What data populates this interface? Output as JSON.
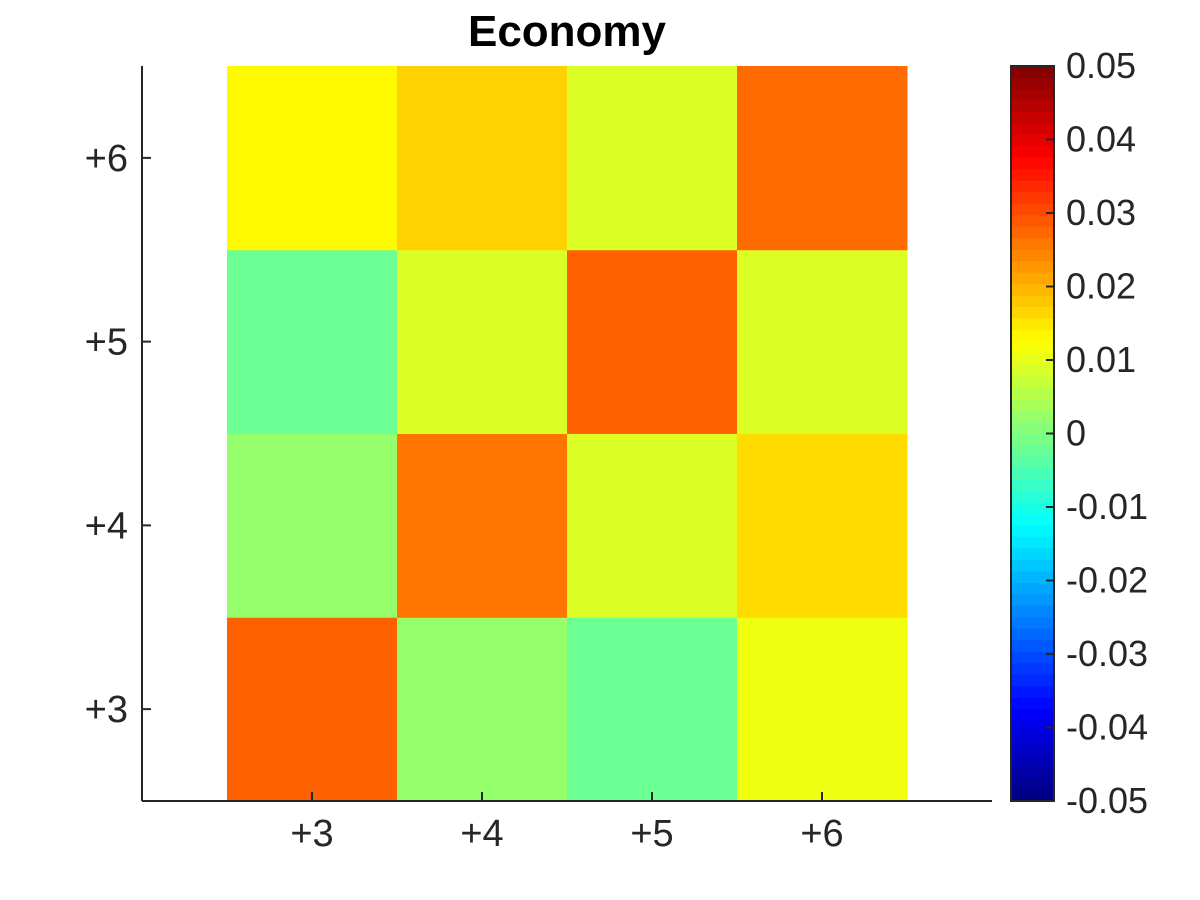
{
  "chart_data": {
    "type": "heatmap",
    "title": "Economy",
    "xlabel": "",
    "ylabel": "",
    "x_categories": [
      "+3",
      "+4",
      "+5",
      "+6"
    ],
    "y_categories": [
      "+3",
      "+4",
      "+5",
      "+6"
    ],
    "values": [
      [
        0.028,
        0.002,
        -0.002,
        0.011
      ],
      [
        0.002,
        0.026,
        0.009,
        0.016
      ],
      [
        -0.002,
        0.009,
        0.028,
        0.009
      ],
      [
        0.013,
        0.017,
        0.009,
        0.027
      ]
    ],
    "values_row_order": "rows follow y_categories from bottom (+3) to top (+6); columns follow x_categories",
    "colorbar": {
      "colormap": "jet",
      "range": [
        -0.05,
        0.05
      ],
      "ticks": [
        "0.05",
        "0.04",
        "0.03",
        "0.02",
        "0.01",
        "0",
        "-0.01",
        "-0.02",
        "-0.03",
        "-0.04",
        "-0.05"
      ]
    },
    "grid": false
  }
}
